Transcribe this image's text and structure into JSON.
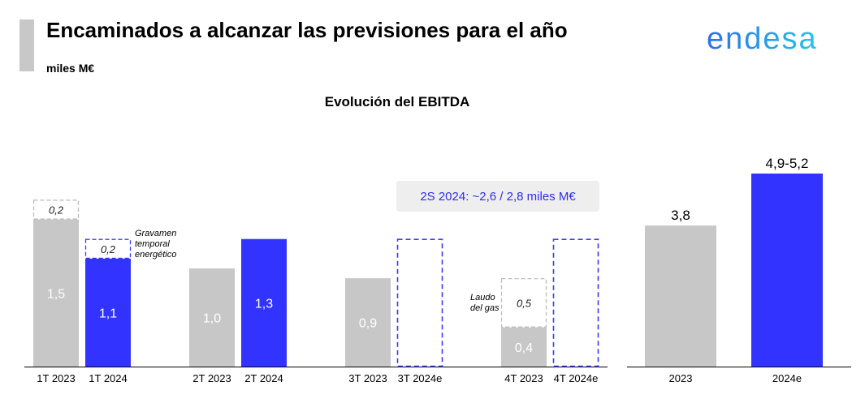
{
  "header": {
    "title": "Encaminados a alcanzar las previsiones para el año",
    "subtitle": "miles M€",
    "logo_text": "endesa"
  },
  "colors": {
    "gray": "#c7c7c7",
    "blue": "#3333ff",
    "dashed_gray": "#bdbdbd",
    "dashed_blue": "#3a3af0",
    "callout_text": "#2f2fe8",
    "logo_from": "#2f6fe8",
    "logo_to": "#27c4e8"
  },
  "chart_data": [
    {
      "type": "bar",
      "title": "Evolución del EBITDA",
      "unit": "miles M€",
      "ylim": [
        0,
        1.95
      ],
      "categories": [
        "1T 2023",
        "1T 2024",
        "2T 2023",
        "2T 2024",
        "3T 2023",
        "3T 2024e",
        "4T 2023",
        "4T 2024e"
      ],
      "bars": [
        {
          "category": "1T 2023",
          "value": 1.5,
          "label": "1,5",
          "style": "gray",
          "extra": {
            "value": 0.2,
            "label": "0,2",
            "style": "dashed-gray"
          }
        },
        {
          "category": "1T 2024",
          "value": 1.1,
          "label": "1,1",
          "style": "blue",
          "extra": {
            "value": 0.2,
            "label": "0,2",
            "style": "dashed-blue"
          }
        },
        {
          "category": "2T 2023",
          "value": 1.0,
          "label": "1,0",
          "style": "gray"
        },
        {
          "category": "2T 2024",
          "value": 1.3,
          "label": "1,3",
          "style": "blue"
        },
        {
          "category": "3T 2023",
          "value": 0.9,
          "label": "0,9",
          "style": "gray"
        },
        {
          "category": "3T 2024e",
          "value": 1.3,
          "label": "",
          "style": "dashed-blue-outline"
        },
        {
          "category": "4T 2023",
          "value": 0.4,
          "label": "0,4",
          "style": "gray",
          "extra": {
            "value": 0.5,
            "label": "0,5",
            "style": "dashed-gray"
          }
        },
        {
          "category": "4T 2024e",
          "value": 1.3,
          "label": "",
          "style": "dashed-blue-outline"
        }
      ],
      "annotations": [
        {
          "text_lines": [
            "Gravamen",
            "temporal",
            "energético"
          ],
          "near": "1T 2024"
        },
        {
          "text_lines": [
            "Laudo",
            "del gas"
          ],
          "near": "4T 2023"
        }
      ],
      "callout": "2S 2024: ~2,6 / 2,8 miles M€"
    },
    {
      "type": "bar",
      "title": "",
      "unit": "miles M€",
      "ylim": [
        0,
        5.8
      ],
      "categories": [
        "2023",
        "2024e"
      ],
      "bars": [
        {
          "category": "2023",
          "value": 3.8,
          "label": "3,8",
          "style": "gray"
        },
        {
          "category": "2024e",
          "value": 5.2,
          "label": "4,9-5,2",
          "style": "blue"
        }
      ]
    }
  ]
}
